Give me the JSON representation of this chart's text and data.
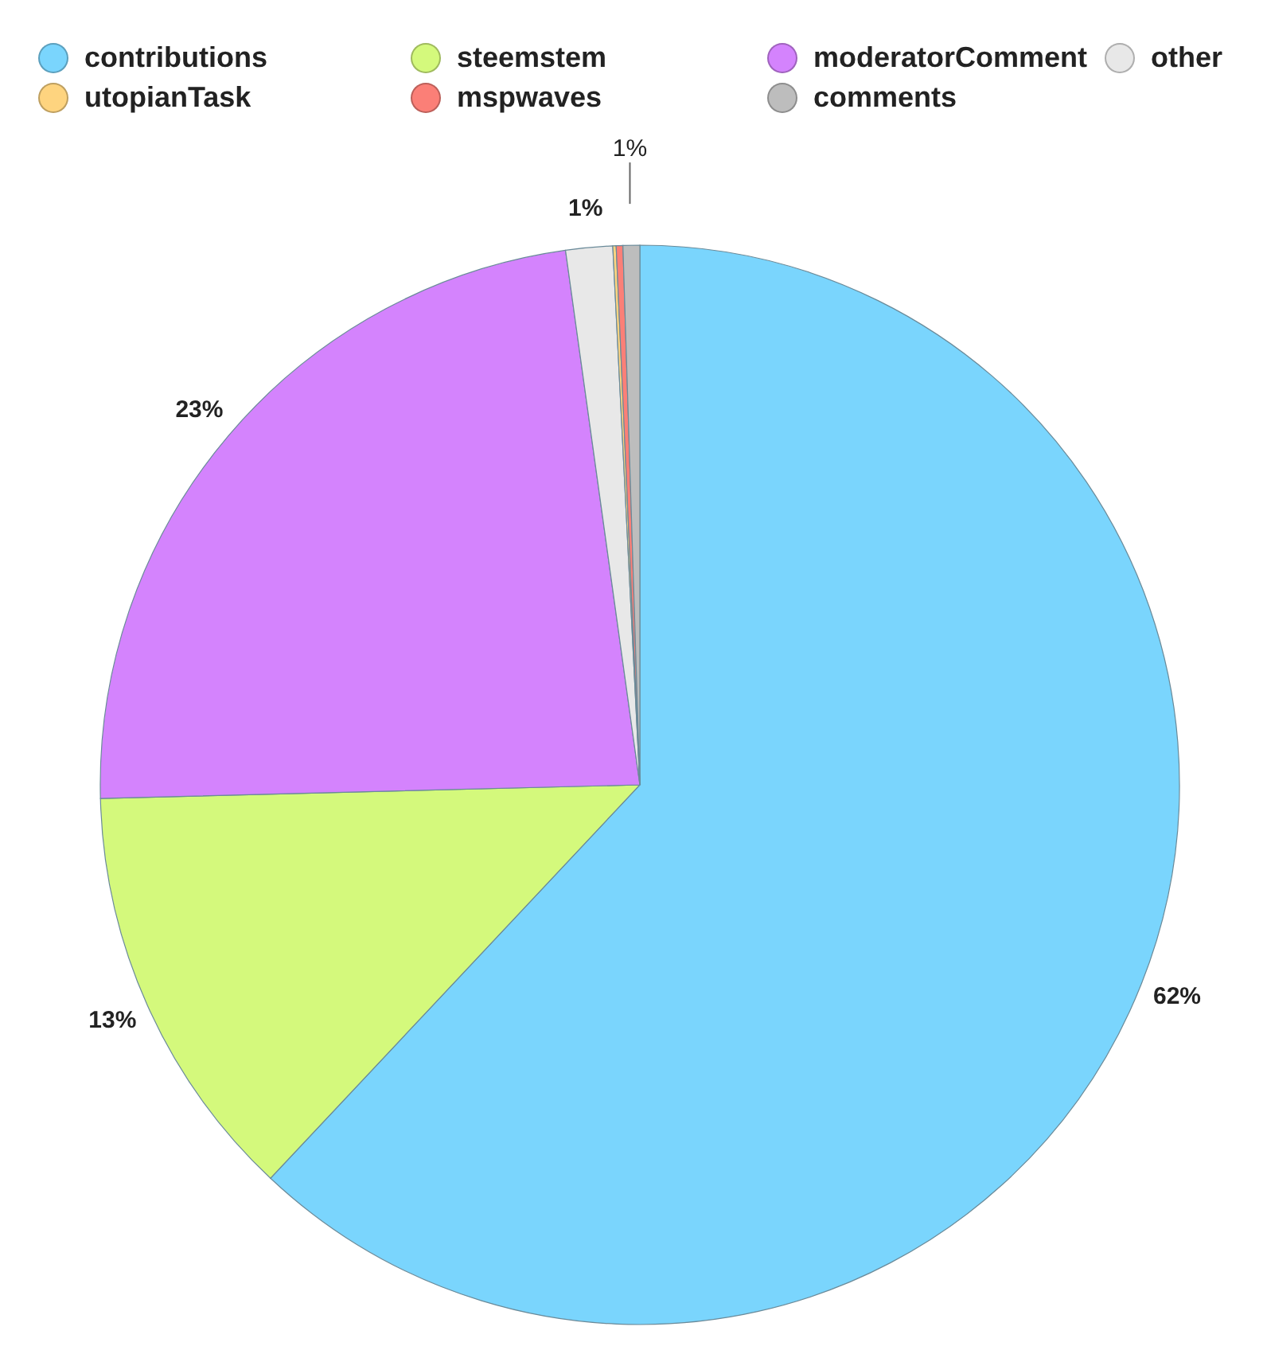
{
  "chart_data": {
    "type": "pie",
    "legend": "top",
    "categories": [
      "contributions",
      "steemstem",
      "moderatorComment",
      "other",
      "utopianTask",
      "mspwaves",
      "comments"
    ],
    "values": [
      62,
      12.6,
      23.2,
      1.4,
      0.1,
      0.2,
      0.5
    ],
    "value_labels": [
      "62%",
      "13%",
      "23%",
      "1%",
      null,
      null,
      "1%"
    ],
    "colors": [
      "#7ad5fd",
      "#d4f97c",
      "#d483fd",
      "#e8e8e8",
      "#fed47f",
      "#fb7f77",
      "#bdbdbd"
    ]
  }
}
